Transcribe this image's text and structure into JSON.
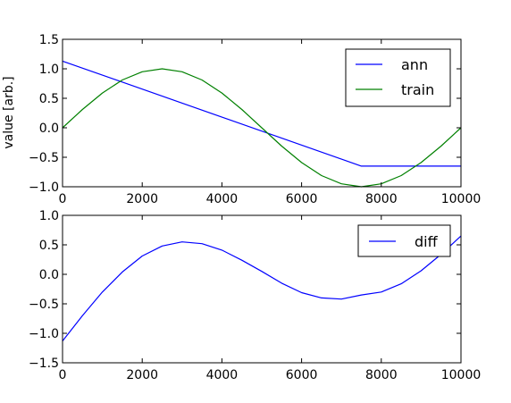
{
  "chart_data": [
    {
      "type": "line",
      "title": "",
      "xlabel": "",
      "ylabel": "value [arb.]",
      "xlim": [
        0,
        10000
      ],
      "ylim": [
        -1.0,
        1.5
      ],
      "xticks": [
        0,
        2000,
        4000,
        6000,
        8000,
        10000
      ],
      "yticks": [
        -1.0,
        -0.5,
        0.0,
        0.5,
        1.0,
        1.5
      ],
      "xtick_labels": [
        "0",
        "2000",
        "4000",
        "6000",
        "8000",
        "10000"
      ],
      "ytick_labels": [
        "−1.0",
        "−0.5",
        "0.0",
        "0.5",
        "1.0",
        "1.5"
      ],
      "grid": false,
      "legend": "top-right",
      "series": [
        {
          "name": "ann",
          "color": "#0000ff",
          "x": [
            0,
            7500,
            10000
          ],
          "values": [
            1.13,
            -0.65,
            -0.65
          ]
        },
        {
          "name": "train",
          "color": "#008000",
          "x": [
            0,
            500,
            1000,
            1500,
            2000,
            2500,
            3000,
            3500,
            4000,
            4500,
            5000,
            5500,
            6000,
            6500,
            7000,
            7500,
            8000,
            8500,
            9000,
            9500,
            10000
          ],
          "values": [
            0.0,
            0.31,
            0.59,
            0.81,
            0.95,
            1.0,
            0.95,
            0.81,
            0.59,
            0.31,
            0.0,
            -0.31,
            -0.59,
            -0.81,
            -0.95,
            -1.0,
            -0.95,
            -0.81,
            -0.59,
            -0.31,
            0.0
          ]
        }
      ]
    },
    {
      "type": "line",
      "title": "",
      "xlabel": "",
      "ylabel": "",
      "xlim": [
        0,
        10000
      ],
      "ylim": [
        -1.5,
        1.0
      ],
      "xticks": [
        0,
        2000,
        4000,
        6000,
        8000,
        10000
      ],
      "yticks": [
        -1.5,
        -1.0,
        -0.5,
        0.0,
        0.5,
        1.0
      ],
      "xtick_labels": [
        "0",
        "2000",
        "4000",
        "6000",
        "8000",
        "10000"
      ],
      "ytick_labels": [
        "−1.5",
        "−1.0",
        "−0.5",
        "0.0",
        "0.5",
        "1.0"
      ],
      "grid": false,
      "legend": "top-right",
      "series": [
        {
          "name": "diff",
          "color": "#0000ff",
          "x": [
            0,
            500,
            1000,
            1500,
            2000,
            2500,
            3000,
            3500,
            4000,
            4500,
            5000,
            5500,
            6000,
            6500,
            7000,
            7500,
            8000,
            8500,
            9000,
            9500,
            10000
          ],
          "values": [
            -1.13,
            -0.7,
            -0.3,
            0.04,
            0.31,
            0.48,
            0.55,
            0.52,
            0.41,
            0.24,
            0.05,
            -0.15,
            -0.31,
            -0.4,
            -0.42,
            -0.35,
            -0.3,
            -0.16,
            0.06,
            0.34,
            0.65
          ]
        }
      ]
    }
  ]
}
